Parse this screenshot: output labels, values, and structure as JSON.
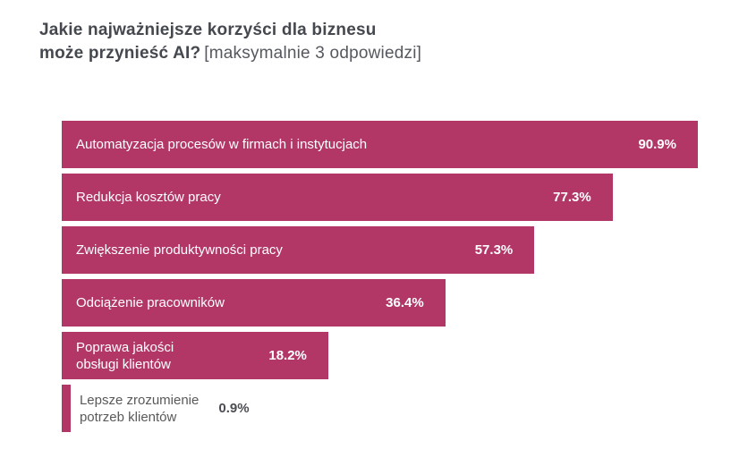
{
  "header": {
    "title_line1": "Jakie najważniejsze korzyści dla biznesu",
    "title_line2_bold": "może przynieść AI?",
    "title_suffix": "[maksymalnie 3 odpowiedzi]"
  },
  "colors": {
    "bar": "#b23767",
    "title_bold": "#45484e",
    "title_light": "#55585e",
    "bar_text": "#ffffff",
    "outside_label": "#58595b",
    "outside_value": "#4b4d52"
  },
  "chart_data": {
    "type": "bar",
    "orientation": "horizontal",
    "title": "Jakie najważniejsze korzyści dla biznesu może przynieść AI?",
    "subtitle": "[maksymalnie 3 odpowiedzi]",
    "unit": "%",
    "legend": false,
    "axes_visible": false,
    "grid": false,
    "categories": [
      "Automatyzacja procesów w firmach i instytucjach",
      "Redukcja kosztów pracy",
      "Zwiększenie produktywności pracy",
      "Odciążenie pracowników",
      "Poprawa jakości obsługi klientów",
      "Lepsze zrozumienie potrzeb klientów"
    ],
    "values": [
      90.9,
      77.3,
      57.3,
      36.4,
      18.2,
      0.9
    ],
    "bars": [
      {
        "label": "Automatyzacja procesów w firmach i instytucjach",
        "value": 90.9,
        "value_label": "90.9%",
        "width_pct": 100,
        "text_inside": true
      },
      {
        "label": "Redukcja kosztów pracy",
        "value": 77.3,
        "value_label": "77.3%",
        "width_pct": 86.6,
        "text_inside": true
      },
      {
        "label": "Zwiększenie produktywności pracy",
        "value": 57.3,
        "value_label": "57.3%",
        "width_pct": 74.3,
        "text_inside": true
      },
      {
        "label": "Odciążenie pracowników",
        "value": 36.4,
        "value_label": "36.4%",
        "width_pct": 60.3,
        "text_inside": true
      },
      {
        "label": "Poprawa jakości\nobsługi klientów",
        "value": 18.2,
        "value_label": "18.2%",
        "width_pct": 41.9,
        "text_inside": true
      },
      {
        "label": "Lepsze zrozumienie\npotrzeb klientów",
        "value": 0.9,
        "value_label": "0.9%",
        "width_pct": 1.4,
        "text_inside": false
      }
    ]
  }
}
